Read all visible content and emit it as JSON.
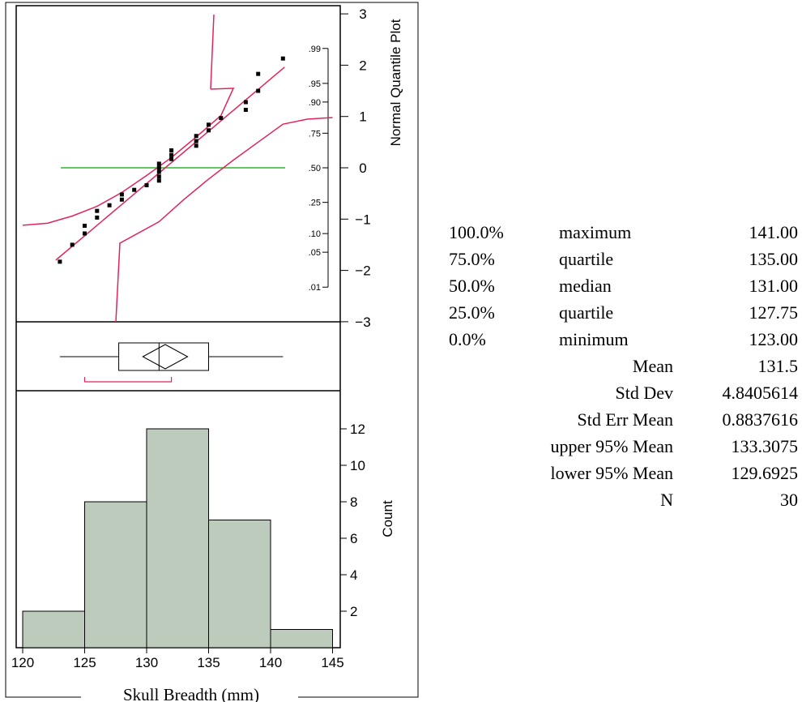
{
  "chart_data": [
    {
      "type": "scatter",
      "title": "",
      "ylabel": "Normal Quantile Plot",
      "ylim": [
        -3,
        3
      ],
      "y_ticks": [
        "3",
        "2",
        "1",
        "0",
        "-1",
        "-2",
        "-3"
      ],
      "prob_ticks": [
        ".99",
        ".95",
        ".90",
        ".75",
        ".50",
        ".25",
        ".10",
        ".05",
        ".01"
      ],
      "points": [
        {
          "x": 123,
          "y": -1.83
        },
        {
          "x": 124,
          "y": -1.5
        },
        {
          "x": 125,
          "y": -1.28
        },
        {
          "x": 125,
          "y": -1.13
        },
        {
          "x": 126,
          "y": -0.97
        },
        {
          "x": 126,
          "y": -0.84
        },
        {
          "x": 127,
          "y": -0.73
        },
        {
          "x": 128,
          "y": -0.62
        },
        {
          "x": 128,
          "y": -0.52
        },
        {
          "x": 129,
          "y": -0.43
        },
        {
          "x": 130,
          "y": -0.34
        },
        {
          "x": 131,
          "y": -0.25
        },
        {
          "x": 131,
          "y": -0.17
        },
        {
          "x": 131,
          "y": -0.08
        },
        {
          "x": 131,
          "y": 0.0
        },
        {
          "x": 131,
          "y": 0.08
        },
        {
          "x": 132,
          "y": 0.17
        },
        {
          "x": 132,
          "y": 0.25
        },
        {
          "x": 132,
          "y": 0.34
        },
        {
          "x": 134,
          "y": 0.43
        },
        {
          "x": 134,
          "y": 0.52
        },
        {
          "x": 134,
          "y": 0.62
        },
        {
          "x": 135,
          "y": 0.73
        },
        {
          "x": 135,
          "y": 0.84
        },
        {
          "x": 136,
          "y": 0.97
        },
        {
          "x": 138,
          "y": 1.13
        },
        {
          "x": 138,
          "y": 1.28
        },
        {
          "x": 139,
          "y": 1.5
        },
        {
          "x": 139,
          "y": 1.83
        },
        {
          "x": 141,
          "y": 2.13
        }
      ],
      "fit_line": {
        "x": [
          123,
          141
        ],
        "y": [
          -1.72,
          1.93
        ]
      },
      "median_line_y": 0,
      "confidence_bands": {
        "upper": [
          [
            120,
            -1.12
          ],
          [
            122,
            -1.08
          ],
          [
            124,
            -0.94
          ],
          [
            126,
            -0.75
          ],
          [
            128,
            -0.48
          ],
          [
            130,
            -0.15
          ],
          [
            132,
            0.2
          ],
          [
            134,
            0.6
          ],
          [
            136,
            1.02
          ],
          [
            137,
            1.55
          ],
          [
            137,
            3.0
          ]
        ],
        "lower": [
          [
            129.5,
            -3.0
          ],
          [
            129.6,
            -1.55
          ],
          [
            131,
            -1.05
          ],
          [
            133,
            -0.62
          ],
          [
            135,
            -0.22
          ],
          [
            137,
            0.15
          ],
          [
            139,
            0.5
          ],
          [
            141,
            0.85
          ],
          [
            143,
            0.95
          ],
          [
            145,
            0.98
          ]
        ]
      },
      "colors": {
        "fit": "#e0245e",
        "median": "#2fb52f",
        "points": "#000000"
      }
    },
    {
      "type": "box",
      "min": 123,
      "q1": 127.75,
      "median": 131,
      "q3": 135,
      "max": 141,
      "mean": 131.5,
      "mean_ci": [
        129.6925,
        133.3075
      ],
      "shortest_half": [
        125,
        132
      ],
      "colors": {
        "shortest_half": "#e0245e"
      }
    },
    {
      "type": "bar",
      "title": "",
      "xlabel": "Skull Breadth (mm)",
      "ylabel": "Count",
      "x_ticks": [
        "120",
        "125",
        "130",
        "135",
        "140",
        "145"
      ],
      "y_ticks": [
        "2",
        "4",
        "6",
        "8",
        "10",
        "12"
      ],
      "bins": [
        [
          120,
          125
        ],
        [
          125,
          130
        ],
        [
          130,
          135
        ],
        [
          135,
          140
        ],
        [
          140,
          145
        ]
      ],
      "values": [
        2,
        8,
        12,
        7,
        1
      ],
      "ylim": [
        0,
        13.33
      ],
      "colors": {
        "bar_fill": "#bccbbb"
      }
    }
  ],
  "quantiles": [
    {
      "pct": "100.0%",
      "name": "maximum",
      "value": "141.00"
    },
    {
      "pct": "75.0%",
      "name": "quartile",
      "value": "135.00"
    },
    {
      "pct": "50.0%",
      "name": "median",
      "value": "131.00"
    },
    {
      "pct": "25.0%",
      "name": "quartile",
      "value": "127.75"
    },
    {
      "pct": "0.0%",
      "name": "minimum",
      "value": "123.00"
    }
  ],
  "moments": [
    {
      "name": "Mean",
      "value": "131.5"
    },
    {
      "name": "Std Dev",
      "value": "4.8405614"
    },
    {
      "name": "Std Err Mean",
      "value": "0.8837616"
    },
    {
      "name": "upper 95% Mean",
      "value": "133.3075"
    },
    {
      "name": "lower 95% Mean",
      "value": "129.6925"
    },
    {
      "name": "N",
      "value": "30"
    }
  ]
}
